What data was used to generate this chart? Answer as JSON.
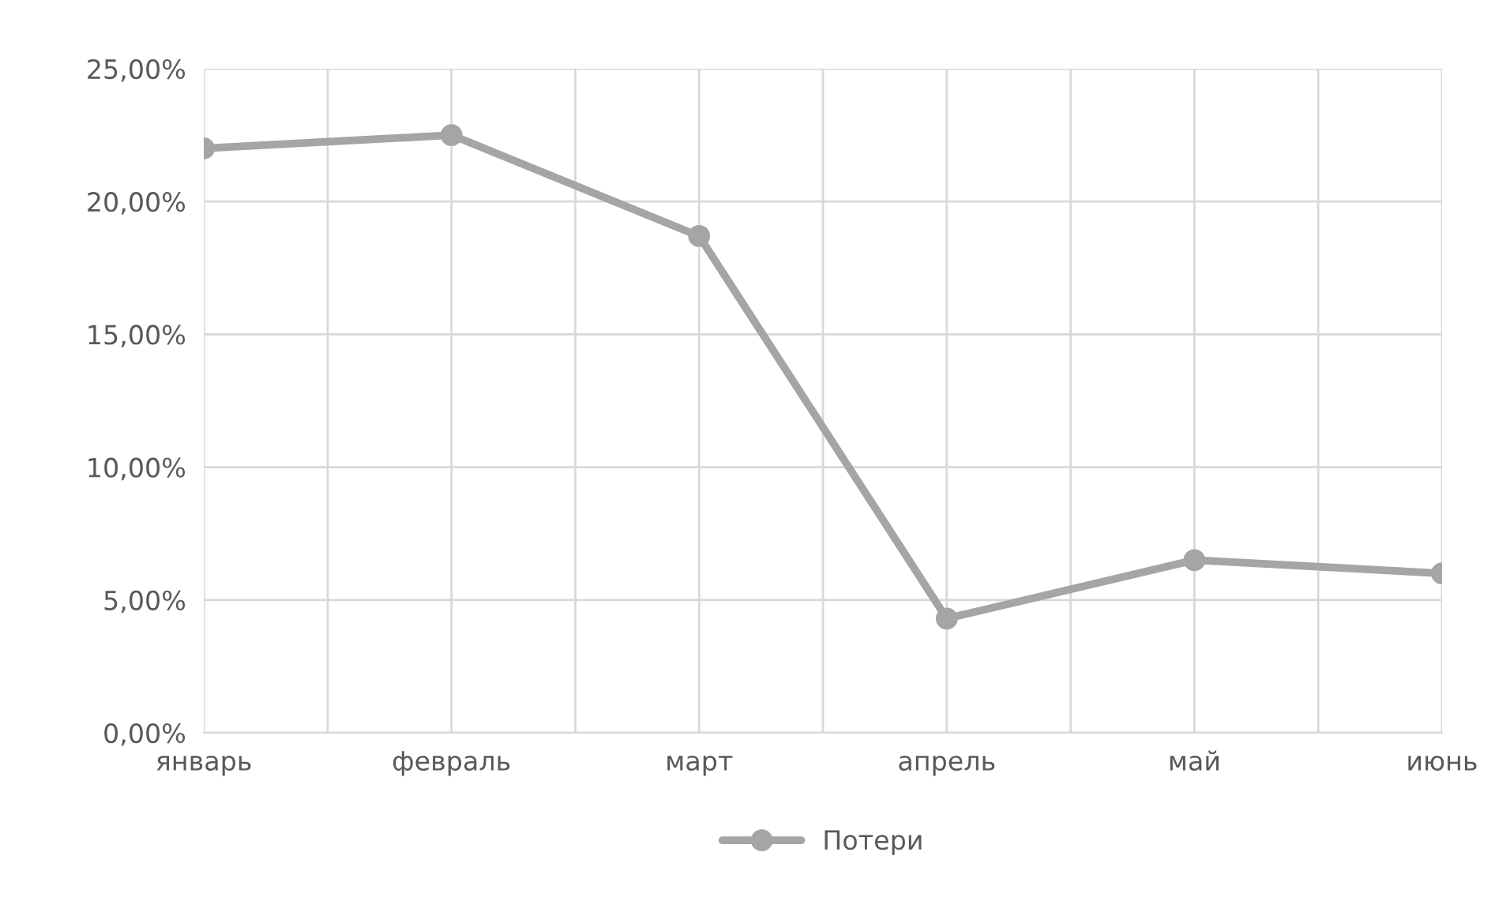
{
  "chart_data": {
    "type": "line",
    "categories": [
      "январь",
      "февраль",
      "март",
      "апрель",
      "май",
      "июнь"
    ],
    "series": [
      {
        "name": "Потери",
        "color": "#a5a5a5",
        "values": [
          22.0,
          22.5,
          18.7,
          4.3,
          6.5,
          6.0
        ]
      }
    ],
    "ylim": [
      0,
      25
    ],
    "yticks": [
      {
        "value": 0,
        "label": "0,00%"
      },
      {
        "value": 5,
        "label": "5,00%"
      },
      {
        "value": 10,
        "label": "10,00%"
      },
      {
        "value": 15,
        "label": "15,00%"
      },
      {
        "value": 20,
        "label": "20,00%"
      },
      {
        "value": 25,
        "label": "25,00%"
      }
    ],
    "grid": true,
    "legend": "bottom",
    "marker": "circle",
    "line_style": "solid"
  }
}
